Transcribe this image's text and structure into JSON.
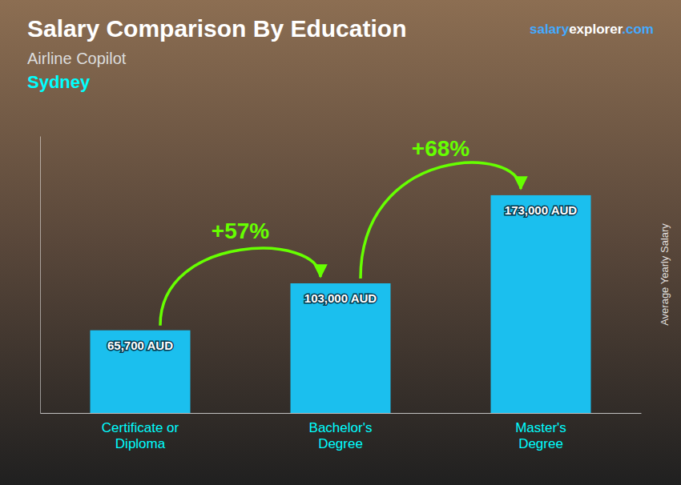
{
  "chart_data": {
    "type": "bar",
    "title": "Salary Comparison By Education",
    "subtitle": "Airline Copilot",
    "annotations": [
      "Sydney",
      "salary",
      "explorer",
      ".com",
      "+57%",
      "+68%"
    ],
    "ylabel": "Average Yearly Salary",
    "categories": [
      "Certificate or\nDiploma",
      "Bachelor's\nDegree",
      "Master's\nDegree"
    ],
    "values": [
      65700,
      103000,
      173000
    ],
    "value_labels": [
      "65,700 AUD",
      "103,000 AUD",
      "173,000 AUD"
    ],
    "data_labels": true,
    "color": "#1BBFEE",
    "ylim": [
      0,
      220000
    ],
    "tick_labels": "x"
  }
}
